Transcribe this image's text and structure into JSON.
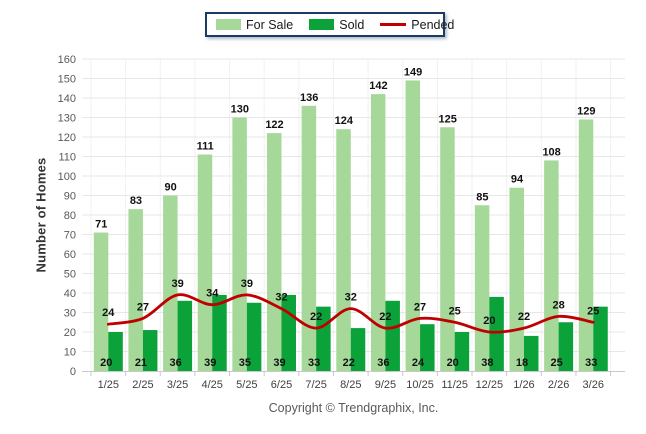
{
  "footer": {
    "copyright": "Copyright © Trendgraphix, Inc."
  },
  "chart_data": {
    "type": "bar",
    "title": "",
    "xlabel": "",
    "ylabel": "Number of Homes",
    "ylim": [
      0,
      160
    ],
    "ytick_interval": 10,
    "grid": true,
    "legend_position": "top-center",
    "categories": [
      "1/25",
      "2/25",
      "3/25",
      "4/25",
      "5/25",
      "6/25",
      "7/25",
      "8/25",
      "9/25",
      "10/25",
      "11/25",
      "12/25",
      "1/26",
      "2/26",
      "3/26"
    ],
    "series": [
      {
        "name": "For Sale",
        "type": "bar",
        "color": "#A6D89A",
        "values": [
          71,
          83,
          90,
          111,
          130,
          122,
          136,
          124,
          142,
          149,
          125,
          85,
          94,
          108,
          129
        ]
      },
      {
        "name": "Sold",
        "type": "bar",
        "color": "#0BA23A",
        "values": [
          20,
          21,
          36,
          39,
          35,
          39,
          33,
          22,
          36,
          24,
          20,
          38,
          18,
          25,
          33
        ]
      },
      {
        "name": "Pended",
        "type": "line",
        "color": "#C00000",
        "values": [
          24,
          27,
          39,
          34,
          39,
          32,
          22,
          32,
          22,
          27,
          25,
          20,
          22,
          28,
          25
        ]
      }
    ],
    "colors": {
      "grid_horizontal": "#E7E7E7",
      "grid_vertical": "#F1F1F1",
      "axis_line": "#C9C9C9",
      "ytick_text": "#595959",
      "xtick_text": "#404040",
      "data_label_text": "#111111",
      "legend_border": "#1B3A64"
    }
  }
}
